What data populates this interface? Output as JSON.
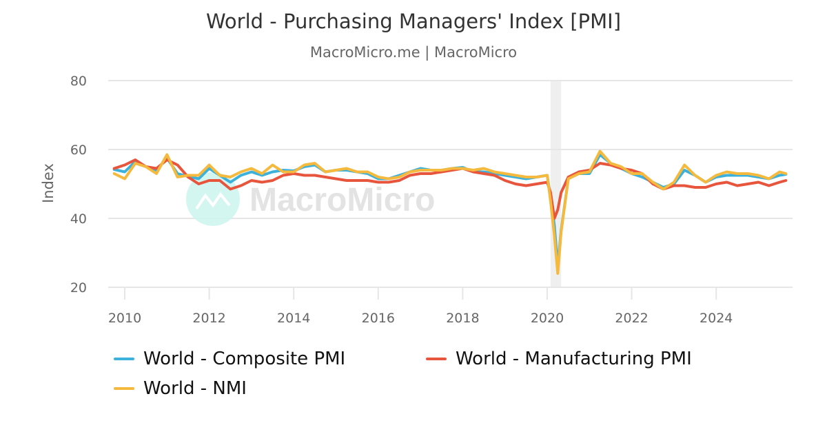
{
  "header": {
    "title": "World - Purchasing Managers' Index [PMI]",
    "subtitle": "MacroMicro.me | MacroMicro"
  },
  "watermark": {
    "text": "MacroMicro"
  },
  "colors": {
    "composite": "#3cb1db",
    "manufacturing": "#e8553d",
    "nmi": "#f5b93d",
    "grid": "#e6e6e6",
    "recession_band": "#efefef"
  },
  "chart_data": {
    "type": "line",
    "title": "World - Purchasing Managers' Index [PMI]",
    "subtitle": "MacroMicro.me | MacroMicro",
    "xlabel": "",
    "ylabel": "Index",
    "ylim": [
      20,
      80
    ],
    "yticks": [
      20,
      40,
      60,
      80
    ],
    "xticks": [
      "2010",
      "2012",
      "2014",
      "2016",
      "2018",
      "2020",
      "2022",
      "2024"
    ],
    "grid": true,
    "legend_position": "bottom",
    "shaded_regions": [
      {
        "from": 2020.08,
        "to": 2020.33,
        "label": "recession"
      }
    ],
    "x": [
      2009.75,
      2010.0,
      2010.25,
      2010.5,
      2010.75,
      2011.0,
      2011.25,
      2011.5,
      2011.75,
      2012.0,
      2012.25,
      2012.5,
      2012.75,
      2013.0,
      2013.25,
      2013.5,
      2013.75,
      2014.0,
      2014.25,
      2014.5,
      2014.75,
      2015.0,
      2015.25,
      2015.5,
      2015.75,
      2016.0,
      2016.25,
      2016.5,
      2016.75,
      2017.0,
      2017.25,
      2017.5,
      2017.75,
      2018.0,
      2018.25,
      2018.5,
      2018.75,
      2019.0,
      2019.25,
      2019.5,
      2019.75,
      2020.0,
      2020.08,
      2020.17,
      2020.25,
      2020.33,
      2020.5,
      2020.75,
      2021.0,
      2021.25,
      2021.5,
      2021.75,
      2022.0,
      2022.25,
      2022.5,
      2022.75,
      2023.0,
      2023.25,
      2023.5,
      2023.75,
      2024.0,
      2024.25,
      2024.5,
      2024.75,
      2025.0,
      2025.25,
      2025.5,
      2025.65
    ],
    "series": [
      {
        "name": "World - Composite PMI",
        "color": "#3cb1db",
        "values": [
          54.2,
          53.5,
          56.5,
          55.0,
          54.0,
          57.5,
          53.0,
          52.2,
          51.5,
          54.5,
          52.5,
          50.5,
          52.5,
          53.5,
          52.5,
          53.5,
          54.0,
          53.8,
          55.0,
          55.5,
          53.5,
          54.0,
          54.0,
          53.5,
          53.0,
          51.5,
          51.5,
          52.5,
          53.5,
          54.5,
          54.0,
          54.0,
          54.5,
          54.8,
          53.5,
          53.5,
          53.0,
          52.5,
          52.0,
          51.5,
          52.0,
          52.5,
          46.0,
          38.0,
          26.0,
          36.5,
          51.5,
          53.0,
          53.0,
          58.5,
          56.0,
          54.5,
          53.0,
          52.0,
          50.5,
          49.0,
          50.0,
          54.0,
          52.5,
          50.5,
          52.0,
          52.5,
          52.5,
          52.5,
          52.0,
          51.5,
          52.5,
          52.8
        ]
      },
      {
        "name": "World - Manufacturing PMI",
        "color": "#e8553d",
        "values": [
          54.5,
          55.5,
          57.0,
          55.0,
          54.5,
          57.0,
          55.5,
          52.0,
          50.0,
          51.0,
          51.0,
          48.5,
          49.5,
          51.0,
          50.5,
          51.0,
          52.5,
          53.0,
          52.5,
          52.5,
          52.0,
          51.5,
          51.0,
          51.0,
          51.0,
          50.5,
          50.5,
          51.0,
          52.5,
          53.0,
          53.0,
          53.5,
          54.0,
          54.5,
          53.5,
          53.0,
          52.5,
          51.0,
          50.0,
          49.5,
          50.0,
          50.5,
          47.5,
          40.0,
          42.5,
          47.5,
          52.0,
          53.5,
          54.0,
          56.0,
          55.5,
          54.5,
          54.0,
          53.0,
          50.0,
          48.5,
          49.5,
          49.5,
          49.0,
          49.0,
          50.0,
          50.5,
          49.5,
          50.0,
          50.5,
          49.5,
          50.5,
          51.0
        ]
      },
      {
        "name": "World - NMI",
        "color": "#f5b93d",
        "values": [
          53.0,
          51.5,
          56.0,
          55.0,
          53.0,
          58.5,
          52.0,
          52.5,
          52.5,
          55.5,
          52.5,
          52.0,
          53.5,
          54.5,
          53.0,
          55.5,
          53.5,
          53.5,
          55.5,
          56.0,
          53.5,
          54.0,
          54.5,
          53.5,
          53.5,
          52.0,
          51.5,
          52.0,
          53.5,
          54.0,
          54.0,
          54.0,
          54.5,
          54.5,
          54.0,
          54.5,
          53.5,
          53.0,
          52.5,
          52.0,
          52.0,
          52.5,
          45.0,
          35.0,
          24.0,
          36.0,
          51.5,
          53.0,
          53.5,
          59.5,
          56.0,
          55.0,
          53.0,
          53.0,
          50.5,
          48.5,
          50.5,
          55.5,
          52.5,
          50.5,
          52.5,
          53.5,
          53.0,
          53.0,
          52.5,
          51.5,
          53.5,
          53.0
        ]
      }
    ]
  },
  "legend": {
    "items": [
      {
        "label": "World - Composite PMI",
        "color": "#3cb1db"
      },
      {
        "label": "World - Manufacturing PMI",
        "color": "#e8553d"
      },
      {
        "label": "World - NMI",
        "color": "#f5b93d"
      }
    ]
  }
}
